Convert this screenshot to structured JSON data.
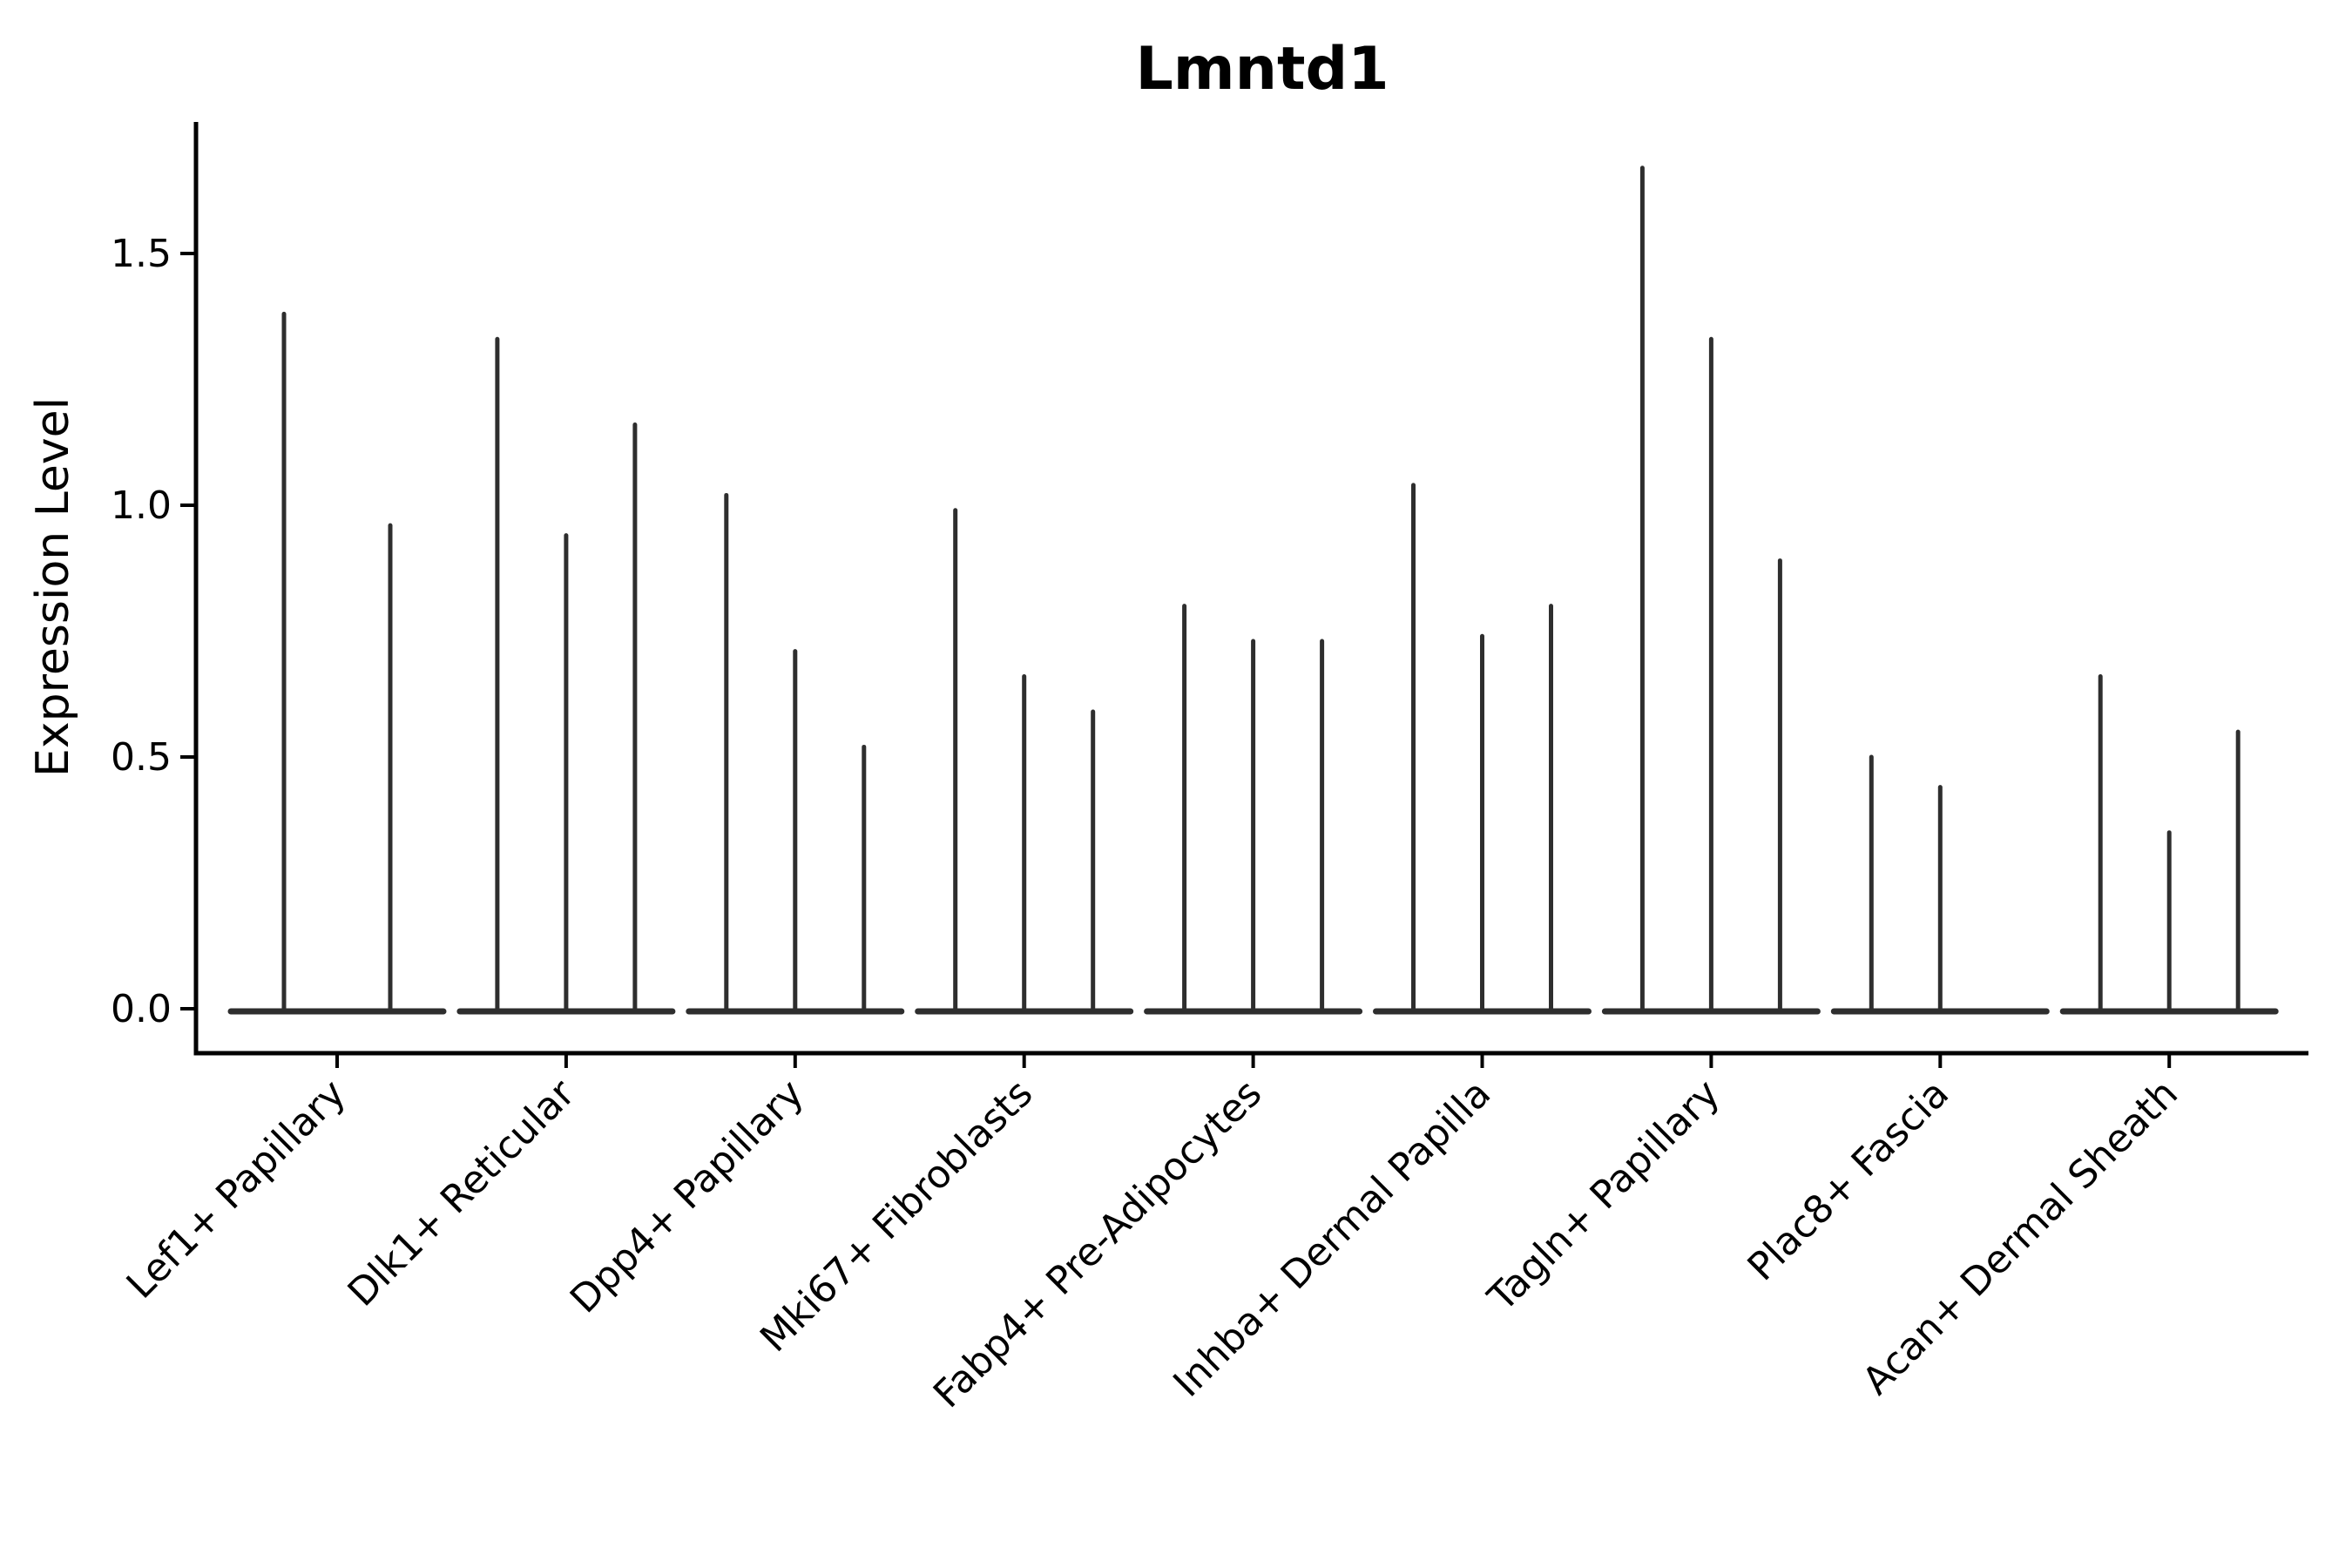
{
  "figure": {
    "title": "Lmntd1",
    "ylabel": "Expression Level"
  },
  "chart_data": {
    "type": "violin",
    "title": "Lmntd1",
    "xlabel": "",
    "ylabel": "Expression Level",
    "ylim": [
      0,
      1.76
    ],
    "yticks": [
      "0.0",
      "0.5",
      "1.0",
      "1.5"
    ],
    "x_tick_rotation_deg": 45,
    "grid": false,
    "legend": "none",
    "style_note": "Single-gene expression violin plot; violins are collapsed to a flat baseline at 0 with one thin vertical spike per violin reaching the maximum expression value; up to 3 violins per cell-type group",
    "categories": [
      "Lef1+ Papillary",
      "Dlk1+ Reticular",
      "Dpp4+ Papillary",
      "Mki67+ Fibroblasts",
      "Fabp4+ Pre-Adipocytes",
      "Inhba+ Dermal Papilla",
      "Tagln+ Papillary",
      "Plac8+ Fascia",
      "Acan+ Dermal Sheath"
    ],
    "groups": [
      {
        "category": "Lef1+ Papillary",
        "spike_maxima": [
          1.38,
          0.96
        ]
      },
      {
        "category": "Dlk1+ Reticular",
        "spike_maxima": [
          1.33,
          0.94,
          1.16
        ]
      },
      {
        "category": "Dpp4+ Papillary",
        "spike_maxima": [
          1.02,
          0.71,
          0.52
        ]
      },
      {
        "category": "Mki67+ Fibroblasts",
        "spike_maxima": [
          0.99,
          0.66,
          0.59
        ]
      },
      {
        "category": "Fabp4+ Pre-Adipocytes",
        "spike_maxima": [
          0.8,
          0.73,
          0.73
        ]
      },
      {
        "category": "Inhba+ Dermal Papilla",
        "spike_maxima": [
          1.04,
          0.74,
          0.8
        ]
      },
      {
        "category": "Tagln+ Papillary",
        "spike_maxima": [
          1.67,
          1.33,
          0.89
        ]
      },
      {
        "category": "Plac8+ Fascia",
        "spike_maxima": [
          0.5,
          0.44,
          0
        ]
      },
      {
        "category": "Acan+ Dermal Sheath",
        "spike_maxima": [
          0.66,
          0.35,
          0.55
        ]
      }
    ],
    "colors": {
      "violin_line": "#2e2e2e",
      "axis": "#000000",
      "text": "#000000",
      "background": "#ffffff"
    }
  }
}
